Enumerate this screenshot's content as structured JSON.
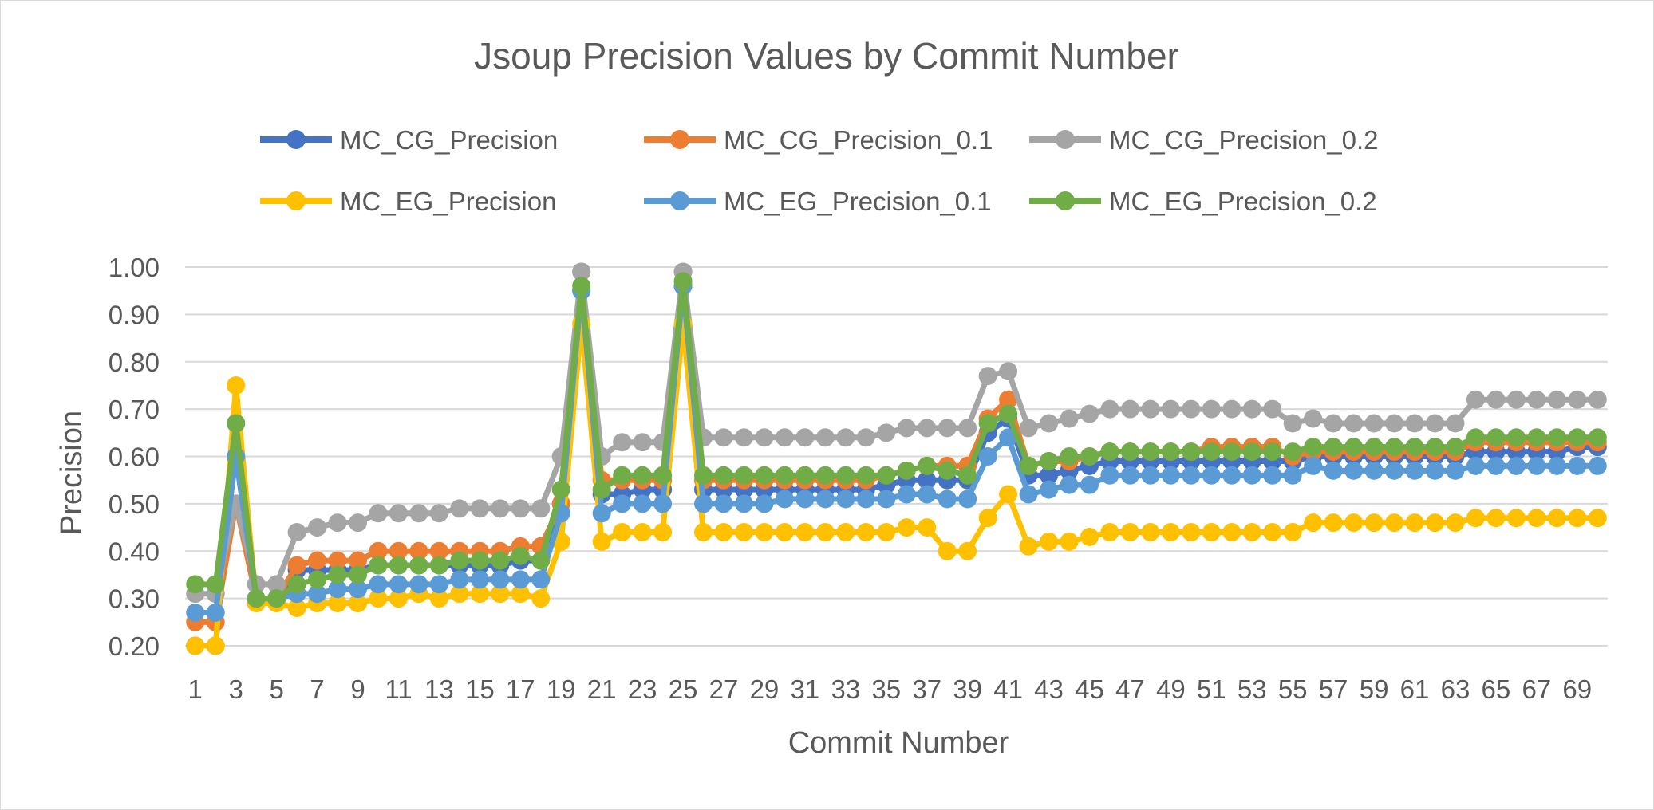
{
  "chart_data": {
    "type": "line",
    "title": "Jsoup Precision Values by Commit Number",
    "xlabel": "Commit Number",
    "ylabel": "Precision",
    "ylim": [
      0.2,
      1.0
    ],
    "yticks": [
      "0.20",
      "0.30",
      "0.40",
      "0.50",
      "0.60",
      "0.70",
      "0.80",
      "0.90",
      "1.00"
    ],
    "x_tick_labels": [
      "1",
      "3",
      "5",
      "7",
      "9",
      "11",
      "13",
      "15",
      "17",
      "19",
      "21",
      "23",
      "25",
      "27",
      "29",
      "31",
      "33",
      "35",
      "37",
      "39",
      "41",
      "43",
      "45",
      "47",
      "49",
      "51",
      "53",
      "55",
      "57",
      "59",
      "61",
      "63",
      "65",
      "67",
      "69"
    ],
    "grid": true,
    "legend_position": "top",
    "x": [
      1,
      2,
      3,
      4,
      5,
      6,
      7,
      8,
      9,
      10,
      11,
      12,
      13,
      14,
      15,
      16,
      17,
      18,
      19,
      20,
      21,
      22,
      23,
      24,
      25,
      26,
      27,
      28,
      29,
      30,
      31,
      32,
      33,
      34,
      35,
      36,
      37,
      38,
      39,
      40,
      41,
      42,
      43,
      44,
      45,
      46,
      47,
      48,
      49,
      50,
      51,
      52,
      53,
      54,
      55,
      56,
      57,
      58,
      59,
      60,
      61,
      62,
      63,
      64,
      65,
      66,
      67,
      68,
      69,
      70
    ],
    "series": [
      {
        "name": "MC_CG_Precision",
        "color": "#4472c4",
        "values": [
          0.2,
          0.2,
          0.67,
          0.3,
          0.3,
          0.36,
          0.36,
          0.36,
          0.36,
          0.37,
          0.37,
          0.37,
          0.37,
          0.37,
          0.37,
          0.37,
          0.38,
          0.38,
          0.5,
          0.95,
          0.52,
          0.52,
          0.53,
          0.53,
          0.96,
          0.53,
          0.53,
          0.53,
          0.53,
          0.53,
          0.53,
          0.53,
          0.53,
          0.53,
          0.54,
          0.55,
          0.55,
          0.55,
          0.55,
          0.65,
          0.68,
          0.56,
          0.56,
          0.57,
          0.58,
          0.59,
          0.59,
          0.59,
          0.59,
          0.59,
          0.59,
          0.59,
          0.59,
          0.59,
          0.59,
          0.6,
          0.6,
          0.6,
          0.6,
          0.6,
          0.6,
          0.6,
          0.6,
          0.61,
          0.61,
          0.61,
          0.61,
          0.61,
          0.62,
          0.62
        ]
      },
      {
        "name": "MC_CG_Precision_0.1",
        "color": "#ed7d31",
        "values": [
          0.25,
          0.25,
          0.5,
          0.3,
          0.3,
          0.37,
          0.38,
          0.38,
          0.38,
          0.4,
          0.4,
          0.4,
          0.4,
          0.4,
          0.4,
          0.4,
          0.41,
          0.41,
          0.5,
          0.99,
          0.55,
          0.55,
          0.55,
          0.55,
          0.99,
          0.55,
          0.55,
          0.55,
          0.55,
          0.55,
          0.55,
          0.55,
          0.55,
          0.55,
          0.56,
          0.57,
          0.58,
          0.58,
          0.58,
          0.68,
          0.72,
          0.58,
          0.59,
          0.59,
          0.6,
          0.61,
          0.61,
          0.61,
          0.61,
          0.61,
          0.62,
          0.62,
          0.62,
          0.62,
          0.6,
          0.61,
          0.61,
          0.61,
          0.61,
          0.61,
          0.61,
          0.61,
          0.61,
          0.63,
          0.63,
          0.63,
          0.63,
          0.63,
          0.63,
          0.63
        ]
      },
      {
        "name": "MC_CG_Precision_0.2",
        "color": "#a5a5a5",
        "values": [
          0.31,
          0.31,
          0.5,
          0.33,
          0.33,
          0.44,
          0.45,
          0.46,
          0.46,
          0.48,
          0.48,
          0.48,
          0.48,
          0.49,
          0.49,
          0.49,
          0.49,
          0.49,
          0.6,
          0.99,
          0.6,
          0.63,
          0.63,
          0.63,
          0.99,
          0.64,
          0.64,
          0.64,
          0.64,
          0.64,
          0.64,
          0.64,
          0.64,
          0.64,
          0.65,
          0.66,
          0.66,
          0.66,
          0.66,
          0.77,
          0.78,
          0.66,
          0.67,
          0.68,
          0.69,
          0.7,
          0.7,
          0.7,
          0.7,
          0.7,
          0.7,
          0.7,
          0.7,
          0.7,
          0.67,
          0.68,
          0.67,
          0.67,
          0.67,
          0.67,
          0.67,
          0.67,
          0.67,
          0.72,
          0.72,
          0.72,
          0.72,
          0.72,
          0.72,
          0.72
        ]
      },
      {
        "name": "MC_EG_Precision",
        "color": "#ffc000",
        "values": [
          0.2,
          0.2,
          0.75,
          0.29,
          0.29,
          0.28,
          0.29,
          0.29,
          0.29,
          0.3,
          0.3,
          0.31,
          0.3,
          0.31,
          0.31,
          0.31,
          0.31,
          0.3,
          0.42,
          0.88,
          0.42,
          0.44,
          0.44,
          0.44,
          0.88,
          0.44,
          0.44,
          0.44,
          0.44,
          0.44,
          0.44,
          0.44,
          0.44,
          0.44,
          0.44,
          0.45,
          0.45,
          0.4,
          0.4,
          0.47,
          0.52,
          0.41,
          0.42,
          0.42,
          0.43,
          0.44,
          0.44,
          0.44,
          0.44,
          0.44,
          0.44,
          0.44,
          0.44,
          0.44,
          0.44,
          0.46,
          0.46,
          0.46,
          0.46,
          0.46,
          0.46,
          0.46,
          0.46,
          0.47,
          0.47,
          0.47,
          0.47,
          0.47,
          0.47,
          0.47
        ]
      },
      {
        "name": "MC_EG_Precision_0.1",
        "color": "#5b9bd5",
        "values": [
          0.27,
          0.27,
          0.6,
          0.3,
          0.3,
          0.31,
          0.31,
          0.32,
          0.32,
          0.33,
          0.33,
          0.33,
          0.33,
          0.34,
          0.34,
          0.34,
          0.34,
          0.34,
          0.48,
          0.95,
          0.48,
          0.5,
          0.5,
          0.5,
          0.96,
          0.5,
          0.5,
          0.5,
          0.5,
          0.51,
          0.51,
          0.51,
          0.51,
          0.51,
          0.51,
          0.52,
          0.52,
          0.51,
          0.51,
          0.6,
          0.64,
          0.52,
          0.53,
          0.54,
          0.54,
          0.56,
          0.56,
          0.56,
          0.56,
          0.56,
          0.56,
          0.56,
          0.56,
          0.56,
          0.56,
          0.58,
          0.57,
          0.57,
          0.57,
          0.57,
          0.57,
          0.57,
          0.57,
          0.58,
          0.58,
          0.58,
          0.58,
          0.58,
          0.58,
          0.58
        ]
      },
      {
        "name": "MC_EG_Precision_0.2",
        "color": "#70ad47",
        "values": [
          0.33,
          0.33,
          0.67,
          0.3,
          0.3,
          0.33,
          0.34,
          0.35,
          0.35,
          0.37,
          0.37,
          0.37,
          0.37,
          0.38,
          0.38,
          0.38,
          0.39,
          0.38,
          0.53,
          0.96,
          0.53,
          0.56,
          0.56,
          0.56,
          0.97,
          0.56,
          0.56,
          0.56,
          0.56,
          0.56,
          0.56,
          0.56,
          0.56,
          0.56,
          0.56,
          0.57,
          0.58,
          0.57,
          0.56,
          0.67,
          0.69,
          0.58,
          0.59,
          0.6,
          0.6,
          0.61,
          0.61,
          0.61,
          0.61,
          0.61,
          0.61,
          0.61,
          0.61,
          0.61,
          0.61,
          0.62,
          0.62,
          0.62,
          0.62,
          0.62,
          0.62,
          0.62,
          0.62,
          0.64,
          0.64,
          0.64,
          0.64,
          0.64,
          0.64,
          0.64
        ]
      }
    ]
  }
}
